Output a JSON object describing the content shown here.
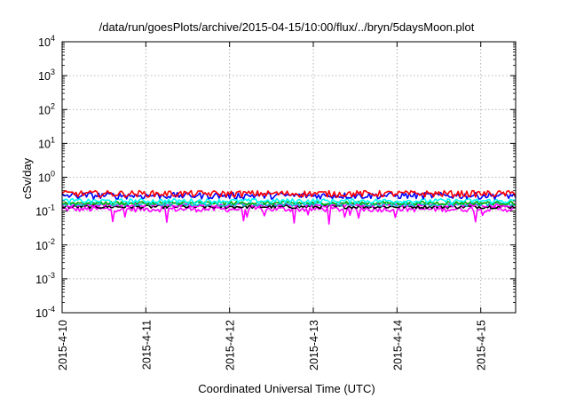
{
  "chart_data": {
    "type": "line",
    "title": "/data/run/goesPlots/archive/2015-04-15/10:00/flux/../bryn/5daysMoon.plot",
    "xlabel": "Coordinated Universal Time (UTC)",
    "ylabel": "cSv/day",
    "yscale": "log",
    "ylim": [
      0.0001,
      10000
    ],
    "xlim": [
      "2015-04-10",
      "2015-04-15 10:00"
    ],
    "x_ticks": [
      "2015-4-10",
      "2015-4-11",
      "2015-4-12",
      "2015-4-13",
      "2015-4-14",
      "2015-4-15"
    ],
    "y_ticks": [
      {
        "base": "10",
        "exp": "-4",
        "value": 0.0001
      },
      {
        "base": "10",
        "exp": "-3",
        "value": 0.001
      },
      {
        "base": "10",
        "exp": "-2",
        "value": 0.01
      },
      {
        "base": "10",
        "exp": "-1",
        "value": 0.1
      },
      {
        "base": "10",
        "exp": "0",
        "value": 1
      },
      {
        "base": "10",
        "exp": "1",
        "value": 10
      },
      {
        "base": "10",
        "exp": "2",
        "value": 100
      },
      {
        "base": "10",
        "exp": "3",
        "value": 1000
      },
      {
        "base": "10",
        "exp": "4",
        "value": 10000
      }
    ],
    "grid": true,
    "series": [
      {
        "color": "#ff00ff",
        "level": 0.115,
        "variation": 0.18,
        "dips": true
      },
      {
        "color": "#000000",
        "level": 0.135,
        "variation": 0.12,
        "dips": false
      },
      {
        "color": "#ff00ff",
        "level": 0.15,
        "variation": 0.12,
        "dips": false
      },
      {
        "color": "#00c8c8",
        "level": 0.16,
        "variation": 0.12,
        "dips": false
      },
      {
        "color": "#00b000",
        "level": 0.175,
        "variation": 0.12,
        "dips": false
      },
      {
        "color": "#00ffff",
        "level": 0.2,
        "variation": 0.16,
        "dips": false
      },
      {
        "color": "#0000ff",
        "level": 0.29,
        "variation": 0.22,
        "dips": false
      },
      {
        "color": "#ff0000",
        "level": 0.33,
        "variation": 0.22,
        "dips": false
      }
    ]
  }
}
